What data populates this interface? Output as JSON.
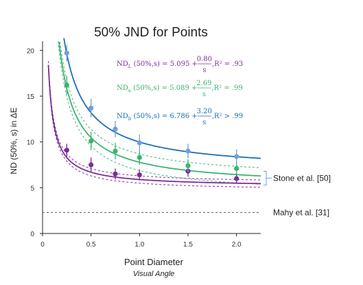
{
  "chart_data": {
    "type": "scatter",
    "title": "50% JND for Points",
    "xlabel": "Point Diameter",
    "xlabel_sub": "Visual Angle",
    "ylabel": "ND (50%, s) in ΔE",
    "xlim": [
      0,
      2.25
    ],
    "ylim": [
      0,
      21
    ],
    "x_ticks": [
      {
        "value": 0,
        "label": "0"
      },
      {
        "value": 0.5,
        "label": "0.5"
      },
      {
        "value": 1.0,
        "label": "1.0"
      },
      {
        "value": 1.5,
        "label": "1.5"
      },
      {
        "value": 2.0,
        "label": "2.0"
      }
    ],
    "y_ticks": [
      {
        "value": 0,
        "label": "0"
      },
      {
        "value": 5,
        "label": "5"
      },
      {
        "value": 10,
        "label": "10"
      },
      {
        "value": 15,
        "label": "15"
      },
      {
        "value": 20,
        "label": "20"
      }
    ],
    "series": [
      {
        "key": "L",
        "color": "#7b2d9a",
        "fit": {
          "a": 5.095,
          "b": 0.8
        },
        "points": [
          {
            "x": 0.25,
            "y": 9.1,
            "err": 0.7
          },
          {
            "x": 0.5,
            "y": 7.5,
            "err": 0.8
          },
          {
            "x": 0.75,
            "y": 6.5,
            "err": 0.6
          },
          {
            "x": 1.0,
            "y": 6.4,
            "err": 0.6
          },
          {
            "x": 1.5,
            "y": 6.8,
            "err": 0.6
          },
          {
            "x": 2.0,
            "y": 6.0,
            "err": 0.5
          }
        ],
        "bound_offsets": [
          -0.4,
          0.4
        ],
        "equation": {
          "lhs": "ND",
          "sub": "L",
          "mid": " (50%,s) = 5.095 + ",
          "num": "0.80",
          "den": "s",
          "tail": ",R² = .93"
        }
      },
      {
        "key": "a",
        "color": "#3cb371",
        "fit": {
          "a": 5.089,
          "b": 2.69
        },
        "points": [
          {
            "x": 0.25,
            "y": 16.2,
            "err": 1.0
          },
          {
            "x": 0.5,
            "y": 10.1,
            "err": 1.0
          },
          {
            "x": 0.75,
            "y": 9.0,
            "err": 0.9
          },
          {
            "x": 1.0,
            "y": 8.3,
            "err": 0.8
          },
          {
            "x": 1.5,
            "y": 7.4,
            "err": 0.7
          },
          {
            "x": 2.0,
            "y": 7.1,
            "err": 0.7
          }
        ],
        "bound_offsets": [
          -0.9,
          0.9
        ],
        "equation": {
          "lhs": "ND",
          "sub": "a",
          "mid": " (50%,s) = 5.089 + ",
          "num": "2.69",
          "den": "s",
          "tail": ",R² = .99"
        }
      },
      {
        "key": "b",
        "color": "#1a6fb5",
        "point_color": "#6f9ee0",
        "fit": {
          "a": 6.786,
          "b": 3.2
        },
        "points": [
          {
            "x": 0.25,
            "y": 19.7,
            "err": 0.9
          },
          {
            "x": 0.5,
            "y": 13.7,
            "err": 1.0
          },
          {
            "x": 0.75,
            "y": 11.4,
            "err": 0.9
          },
          {
            "x": 1.0,
            "y": 9.9,
            "err": 0.9
          },
          {
            "x": 1.5,
            "y": 9.0,
            "err": 0.8
          },
          {
            "x": 2.0,
            "y": 8.4,
            "err": 0.8
          }
        ],
        "equation": {
          "lhs": "ND",
          "sub": "b",
          "mid": " (50%,s) = 6.786 + ",
          "num": "3.20",
          "den": "s",
          "tail": ",R² > .99"
        }
      }
    ],
    "annotations": [
      {
        "label": "Stone et al. [50]",
        "y_range": [
          5.3,
          6.8
        ]
      },
      {
        "label": "Mahy et al. [31]",
        "y": 2.3
      }
    ]
  }
}
